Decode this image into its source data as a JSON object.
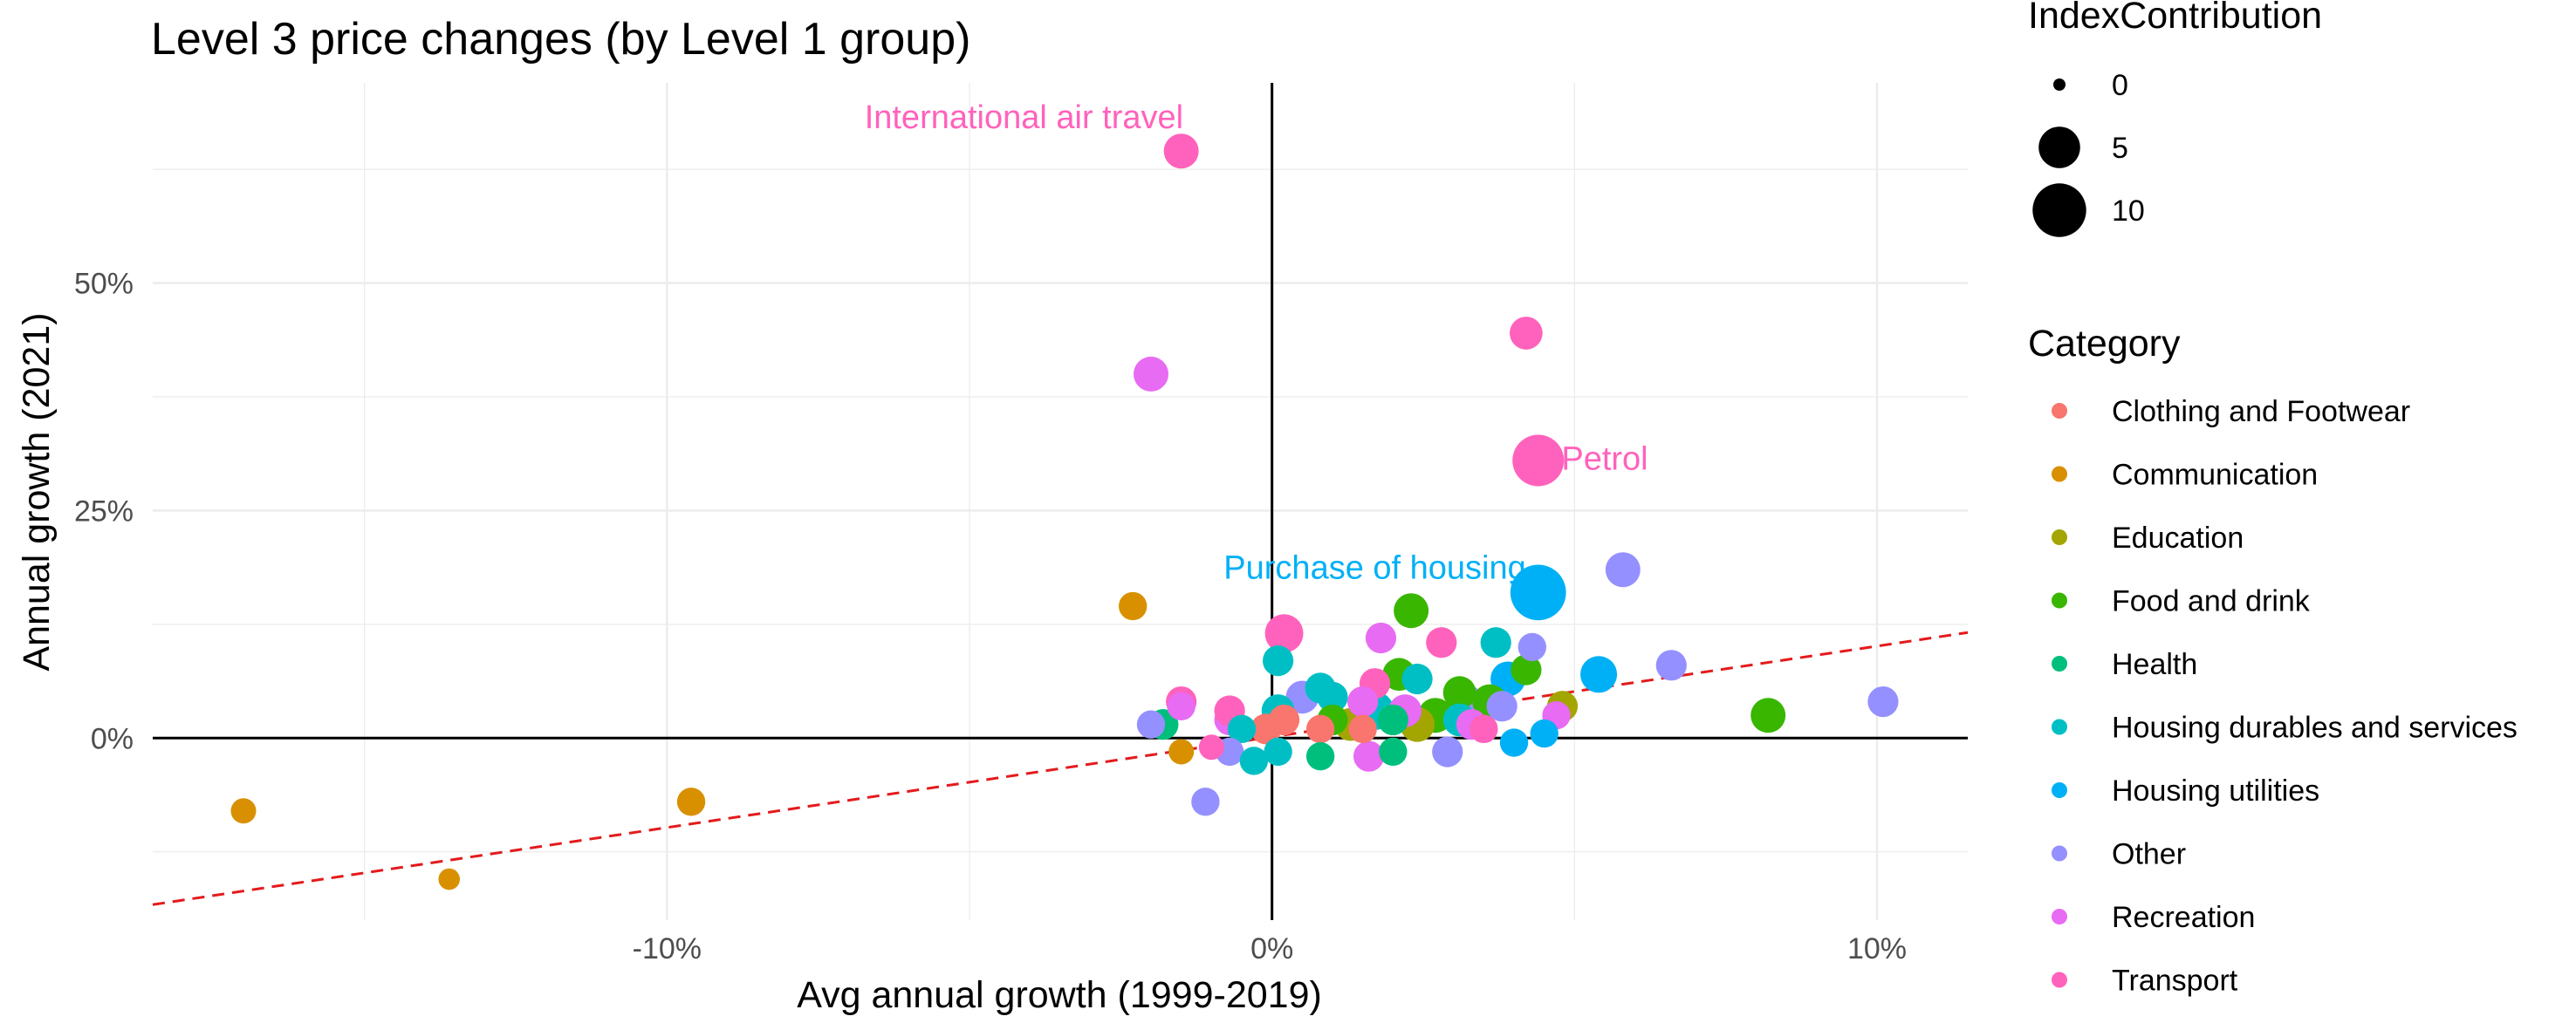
{
  "chart_data": {
    "type": "scatter",
    "title": "Level 3 price changes (by Level 1 group)",
    "xlabel": "Avg annual growth (1999-2019)",
    "ylabel": "Annual growth (2021)",
    "xlim": [
      -18.5,
      11.5
    ],
    "ylim": [
      -20,
      72
    ],
    "x_ticks": [
      -10,
      0,
      10
    ],
    "x_tick_labels": [
      "-10%",
      "0%",
      "10%"
    ],
    "y_ticks": [
      0,
      25,
      50
    ],
    "y_tick_labels": [
      "0%",
      "25%",
      "50%"
    ],
    "grid": true,
    "reference_lines": {
      "x": 0,
      "y": 0
    },
    "trend_line": {
      "style": "dashed",
      "color": "#e41a1c",
      "from": [
        -18.5,
        -18.3
      ],
      "to": [
        11.5,
        11.6
      ]
    },
    "size_legend": {
      "title": "IndexContribution",
      "values": [
        0,
        5,
        10
      ]
    },
    "color_legend": {
      "title": "Category",
      "position": "right",
      "items": [
        {
          "name": "Clothing and Footwear",
          "color": "#F8766D"
        },
        {
          "name": "Communication",
          "color": "#D89000"
        },
        {
          "name": "Education",
          "color": "#A3A500"
        },
        {
          "name": "Food and drink",
          "color": "#39B600"
        },
        {
          "name": "Health",
          "color": "#00BF7D"
        },
        {
          "name": "Housing durables and services",
          "color": "#00BFC4"
        },
        {
          "name": "Housing utilities",
          "color": "#00B0F6"
        },
        {
          "name": "Other",
          "color": "#9590FF"
        },
        {
          "name": "Recreation",
          "color": "#E76BF3"
        },
        {
          "name": "Transport",
          "color": "#FF62BC"
        }
      ]
    },
    "annotations": [
      {
        "text": "International air travel",
        "x": -4.1,
        "y": 67.0,
        "anchor": "middle",
        "color": "#FF62BC"
      },
      {
        "text": "Petrol",
        "x": 5.5,
        "y": 29.5,
        "anchor": "middle",
        "color": "#FF62BC"
      },
      {
        "text": "Purchase of housing",
        "x": 1.7,
        "y": 17.5,
        "anchor": "middle",
        "color": "#00B0F6"
      }
    ],
    "points": [
      {
        "x": -1.5,
        "y": 64.5,
        "s": 3,
        "c": "Transport"
      },
      {
        "x": 4.2,
        "y": 44.5,
        "s": 2.5,
        "c": "Transport"
      },
      {
        "x": -2.0,
        "y": 40.0,
        "s": 3,
        "c": "Recreation"
      },
      {
        "x": 4.4,
        "y": 30.5,
        "s": 9,
        "c": "Transport"
      },
      {
        "x": 4.4,
        "y": 16.0,
        "s": 11,
        "c": "Housing utilities"
      },
      {
        "x": 5.8,
        "y": 18.5,
        "s": 3,
        "c": "Other"
      },
      {
        "x": 2.3,
        "y": 14.0,
        "s": 3,
        "c": "Food and drink"
      },
      {
        "x": -2.3,
        "y": 14.5,
        "s": 1.5,
        "c": "Communication"
      },
      {
        "x": 0.2,
        "y": 11.5,
        "s": 4,
        "c": "Transport"
      },
      {
        "x": 1.8,
        "y": 11.0,
        "s": 2,
        "c": "Recreation"
      },
      {
        "x": 2.8,
        "y": 10.5,
        "s": 2,
        "c": "Transport"
      },
      {
        "x": 3.7,
        "y": 10.5,
        "s": 2,
        "c": "Housing durables and services"
      },
      {
        "x": 4.3,
        "y": 10.0,
        "s": 1.5,
        "c": "Other"
      },
      {
        "x": 0.1,
        "y": 8.5,
        "s": 2,
        "c": "Housing durables and services"
      },
      {
        "x": 6.6,
        "y": 8.0,
        "s": 2,
        "c": "Other"
      },
      {
        "x": 5.4,
        "y": 7.0,
        "s": 3.5,
        "c": "Housing utilities"
      },
      {
        "x": 4.2,
        "y": 7.5,
        "s": 2,
        "c": "Food and drink"
      },
      {
        "x": 3.9,
        "y": 6.5,
        "s": 3,
        "c": "Housing utilities"
      },
      {
        "x": 2.1,
        "y": 7.0,
        "s": 2.5,
        "c": "Food and drink"
      },
      {
        "x": 1.7,
        "y": 6.0,
        "s": 2,
        "c": "Transport"
      },
      {
        "x": 0.8,
        "y": 5.5,
        "s": 2,
        "c": "Housing durables and services"
      },
      {
        "x": 0.5,
        "y": 4.5,
        "s": 2.5,
        "c": "Other"
      },
      {
        "x": 1.0,
        "y": 4.5,
        "s": 2,
        "c": "Housing durables and services"
      },
      {
        "x": 1.5,
        "y": 4.0,
        "s": 2,
        "c": "Recreation"
      },
      {
        "x": 2.4,
        "y": 6.5,
        "s": 2,
        "c": "Housing durables and services"
      },
      {
        "x": 3.1,
        "y": 5.0,
        "s": 2.5,
        "c": "Food and drink"
      },
      {
        "x": 3.2,
        "y": 4.0,
        "s": 3,
        "c": "Other"
      },
      {
        "x": 3.6,
        "y": 4.0,
        "s": 3,
        "c": "Food and drink"
      },
      {
        "x": 1.7,
        "y": 3.0,
        "s": 4,
        "c": "Housing durables and services"
      },
      {
        "x": 2.2,
        "y": 3.0,
        "s": 2.5,
        "c": "Recreation"
      },
      {
        "x": 2.7,
        "y": 2.5,
        "s": 3,
        "c": "Food and drink"
      },
      {
        "x": 4.8,
        "y": 3.5,
        "s": 2,
        "c": "Education"
      },
      {
        "x": 4.7,
        "y": 2.5,
        "s": 1.5,
        "c": "Recreation"
      },
      {
        "x": 3.1,
        "y": 2.0,
        "s": 2.5,
        "c": "Housing durables and services"
      },
      {
        "x": 3.3,
        "y": 1.5,
        "s": 2,
        "c": "Recreation"
      },
      {
        "x": 3.8,
        "y": 3.5,
        "s": 2,
        "c": "Other"
      },
      {
        "x": 2.0,
        "y": 2.0,
        "s": 2,
        "c": "Health"
      },
      {
        "x": 2.4,
        "y": 1.5,
        "s": 3,
        "c": "Education"
      },
      {
        "x": 1.3,
        "y": 1.5,
        "s": 2.5,
        "c": "Education"
      },
      {
        "x": 1.0,
        "y": 2.0,
        "s": 2,
        "c": "Food and drink"
      },
      {
        "x": 0.1,
        "y": 3.0,
        "s": 2.5,
        "c": "Housing durables and services"
      },
      {
        "x": 0.2,
        "y": 2.0,
        "s": 2,
        "c": "Clothing and Footwear"
      },
      {
        "x": -0.1,
        "y": 1.0,
        "s": 2,
        "c": "Clothing and Footwear"
      },
      {
        "x": 0.8,
        "y": 1.0,
        "s": 1.5,
        "c": "Clothing and Footwear"
      },
      {
        "x": 1.5,
        "y": 1.0,
        "s": 1.5,
        "c": "Clothing and Footwear"
      },
      {
        "x": 3.5,
        "y": 1.0,
        "s": 1.5,
        "c": "Transport"
      },
      {
        "x": -0.5,
        "y": 1.0,
        "s": 1.5,
        "c": "Housing durables and services"
      },
      {
        "x": -0.7,
        "y": 2.0,
        "s": 2,
        "c": "Recreation"
      },
      {
        "x": -0.7,
        "y": 3.0,
        "s": 2,
        "c": "Transport"
      },
      {
        "x": -1.5,
        "y": 4.0,
        "s": 2,
        "c": "Transport"
      },
      {
        "x": -1.5,
        "y": 3.5,
        "s": 1.5,
        "c": "Recreation"
      },
      {
        "x": -1.8,
        "y": 1.5,
        "s": 2,
        "c": "Health"
      },
      {
        "x": -2.0,
        "y": 1.5,
        "s": 1.5,
        "c": "Other"
      },
      {
        "x": -1.5,
        "y": -1.5,
        "s": 1,
        "c": "Communication"
      },
      {
        "x": -1.0,
        "y": -1.0,
        "s": 1,
        "c": "Transport"
      },
      {
        "x": -0.7,
        "y": -1.5,
        "s": 1.5,
        "c": "Other"
      },
      {
        "x": -0.3,
        "y": -2.5,
        "s": 1.5,
        "c": "Housing durables and services"
      },
      {
        "x": 0.1,
        "y": -1.5,
        "s": 1.5,
        "c": "Housing durables and services"
      },
      {
        "x": 0.8,
        "y": -2.0,
        "s": 1.5,
        "c": "Health"
      },
      {
        "x": 1.6,
        "y": -2.0,
        "s": 2,
        "c": "Recreation"
      },
      {
        "x": 2.0,
        "y": -1.5,
        "s": 1.5,
        "c": "Health"
      },
      {
        "x": 2.9,
        "y": -1.5,
        "s": 2,
        "c": "Other"
      },
      {
        "x": 4.0,
        "y": -0.5,
        "s": 1.5,
        "c": "Housing utilities"
      },
      {
        "x": 4.5,
        "y": 0.5,
        "s": 1.5,
        "c": "Housing utilities"
      },
      {
        "x": -1.1,
        "y": -7.0,
        "s": 1.5,
        "c": "Other"
      },
      {
        "x": -9.6,
        "y": -7.0,
        "s": 1.5,
        "c": "Communication"
      },
      {
        "x": -17.0,
        "y": -8.0,
        "s": 1,
        "c": "Communication"
      },
      {
        "x": -13.6,
        "y": -15.5,
        "s": 0.5,
        "c": "Communication"
      },
      {
        "x": 8.2,
        "y": 2.5,
        "s": 3,
        "c": "Food and drink"
      },
      {
        "x": 10.1,
        "y": 4.0,
        "s": 2,
        "c": "Other"
      }
    ]
  }
}
